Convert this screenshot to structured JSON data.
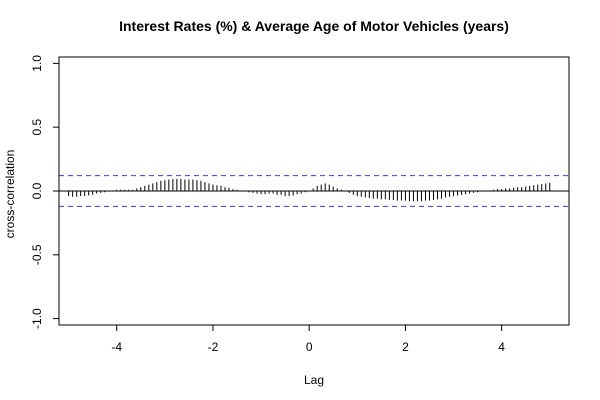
{
  "chart_data": {
    "type": "bar",
    "title": "Interest Rates (%) & Average Age of Motor Vehicles (years)",
    "xlabel": "Lag",
    "ylabel": "cross-correlation",
    "xlim": [
      -5.2,
      5.4
    ],
    "ylim": [
      -1.05,
      1.05
    ],
    "x_ticks": [
      -4,
      -2,
      0,
      2,
      4
    ],
    "y_ticks": [
      -1.0,
      -0.5,
      0.0,
      0.5,
      1.0
    ],
    "x_tick_labels": [
      "-4",
      "-2",
      "0",
      "2",
      "4"
    ],
    "y_tick_labels": [
      "-1.0",
      "-0.5",
      "0.0",
      "0.5",
      "1.0"
    ],
    "confidence_bounds": [
      0.12,
      -0.12
    ],
    "grid": false,
    "colors": {
      "bars": "#000000",
      "bounds": "#3b3bdc",
      "zero_line": "#000000",
      "frame": "#000000"
    },
    "series": [
      {
        "x": [
          -5.0,
          -4.917,
          -4.833,
          -4.75,
          -4.667,
          -4.583,
          -4.5,
          -4.417,
          -4.333,
          -4.25,
          -4.167,
          -4.083,
          -4.0,
          -3.917,
          -3.833,
          -3.75,
          -3.667,
          -3.583,
          -3.5,
          -3.417,
          -3.333,
          -3.25,
          -3.167,
          -3.083,
          -3.0,
          -2.917,
          -2.833,
          -2.75,
          -2.667,
          -2.583,
          -2.5,
          -2.417,
          -2.333,
          -2.25,
          -2.167,
          -2.083,
          -2.0,
          -1.917,
          -1.833,
          -1.75,
          -1.667,
          -1.583,
          -1.5,
          -1.417,
          -1.333,
          -1.25,
          -1.167,
          -1.083,
          -1.0,
          -0.917,
          -0.833,
          -0.75,
          -0.667,
          -0.583,
          -0.5,
          -0.417,
          -0.333,
          -0.25,
          -0.167,
          -0.083,
          0.0,
          0.083,
          0.167,
          0.25,
          0.333,
          0.417,
          0.5,
          0.583,
          0.667,
          0.75,
          0.833,
          0.917,
          1.0,
          1.083,
          1.167,
          1.25,
          1.333,
          1.417,
          1.5,
          1.583,
          1.667,
          1.75,
          1.833,
          1.917,
          2.0,
          2.083,
          2.167,
          2.25,
          2.333,
          2.417,
          2.5,
          2.583,
          2.667,
          2.75,
          2.833,
          2.917,
          3.0,
          3.083,
          3.167,
          3.25,
          3.333,
          3.417,
          3.5,
          3.583,
          3.667,
          3.75,
          3.833,
          3.917,
          4.0,
          4.083,
          4.167,
          4.25,
          4.333,
          4.417,
          4.5,
          4.583,
          4.667,
          4.75,
          4.833,
          4.917,
          5.0
        ],
        "values": [
          -0.04,
          -0.045,
          -0.045,
          -0.04,
          -0.04,
          -0.035,
          -0.03,
          -0.02,
          -0.015,
          -0.01,
          0.0,
          0.005,
          0.01,
          0.01,
          0.01,
          0.01,
          0.01,
          0.02,
          0.03,
          0.04,
          0.05,
          0.06,
          0.07,
          0.08,
          0.085,
          0.09,
          0.095,
          0.095,
          0.095,
          0.09,
          0.09,
          0.09,
          0.085,
          0.08,
          0.07,
          0.06,
          0.05,
          0.045,
          0.04,
          0.03,
          0.025,
          0.015,
          0.01,
          0.0,
          -0.005,
          -0.01,
          -0.015,
          -0.02,
          -0.025,
          -0.025,
          -0.02,
          -0.02,
          -0.03,
          -0.03,
          -0.04,
          -0.04,
          -0.035,
          -0.025,
          -0.02,
          -0.01,
          0.0,
          0.02,
          0.04,
          0.05,
          0.06,
          0.05,
          0.035,
          0.02,
          0.01,
          0.0,
          -0.015,
          -0.03,
          -0.04,
          -0.045,
          -0.05,
          -0.055,
          -0.06,
          -0.06,
          -0.065,
          -0.065,
          -0.07,
          -0.07,
          -0.075,
          -0.075,
          -0.075,
          -0.08,
          -0.08,
          -0.08,
          -0.08,
          -0.075,
          -0.075,
          -0.07,
          -0.065,
          -0.06,
          -0.05,
          -0.045,
          -0.04,
          -0.035,
          -0.03,
          -0.025,
          -0.02,
          -0.015,
          -0.01,
          -0.005,
          0.0,
          0.005,
          0.01,
          0.015,
          0.015,
          0.02,
          0.02,
          0.025,
          0.03,
          0.03,
          0.035,
          0.04,
          0.045,
          0.05,
          0.055,
          0.06,
          0.065
        ]
      }
    ]
  }
}
